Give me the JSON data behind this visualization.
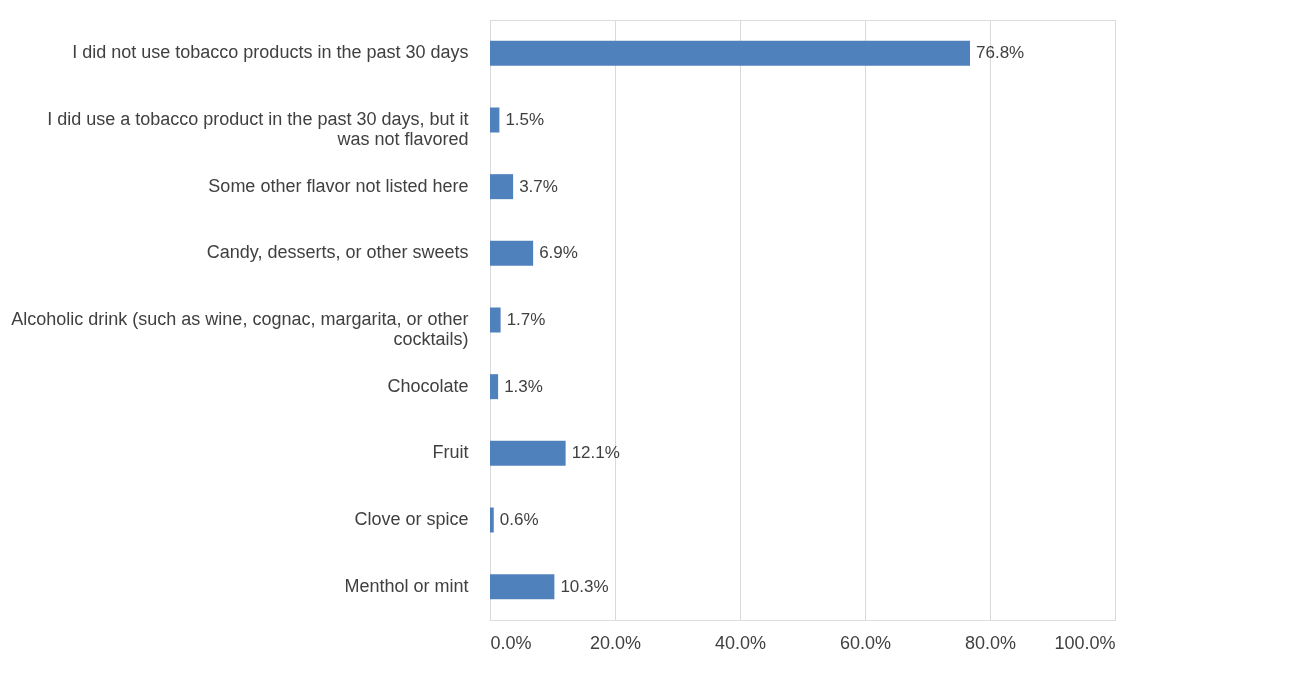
{
  "chart_data": {
    "type": "bar",
    "orientation": "horizontal",
    "categories": [
      "I did not use tobacco products in the past 30 days",
      "I did use a tobacco product in the past 30 days, but it was not flavored",
      "Some other flavor not listed here",
      "Candy, desserts, or other sweets",
      "Alcoholic drink (such as wine, cognac, margarita, or other cocktails)",
      "Chocolate",
      "Fruit",
      "Clove or spice",
      "Menthol or mint"
    ],
    "values": [
      76.8,
      1.5,
      3.7,
      6.9,
      1.7,
      1.3,
      12.1,
      0.6,
      10.3
    ],
    "value_labels": [
      "76.8%",
      "1.5%",
      "3.7%",
      "6.9%",
      "1.7%",
      "1.3%",
      "12.1%",
      "0.6%",
      "10.3%"
    ],
    "color": "#4f81bd",
    "xlim": [
      0,
      100
    ],
    "xticks": [
      {
        "value": 0,
        "label": "0.0%"
      },
      {
        "value": 20,
        "label": "20.0%"
      },
      {
        "value": 40,
        "label": "40.0%"
      },
      {
        "value": 60,
        "label": "60.0%"
      },
      {
        "value": 80,
        "label": "80.0%"
      },
      {
        "value": 100,
        "label": "100.0%"
      }
    ],
    "grid": "x"
  }
}
